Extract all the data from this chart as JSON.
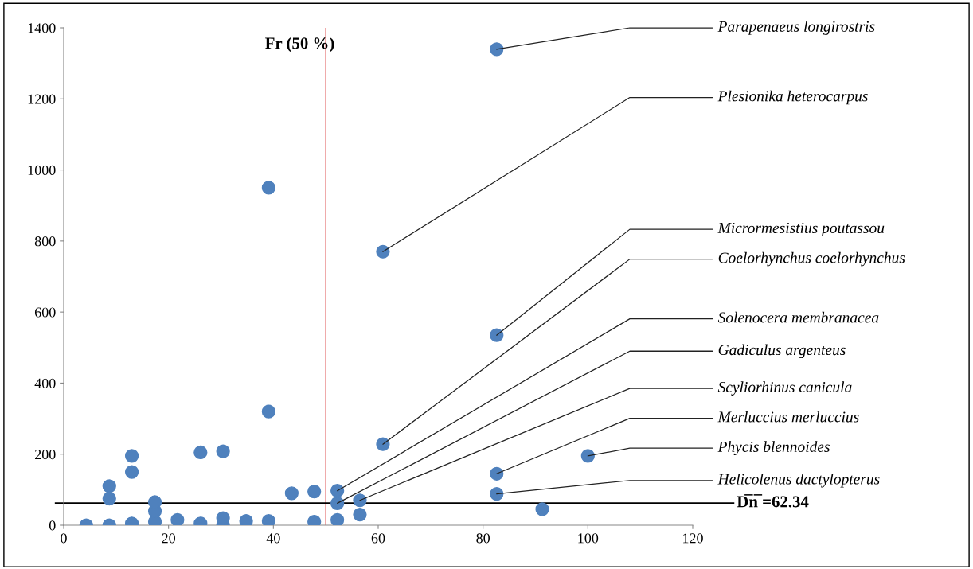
{
  "chart_data": {
    "type": "scatter",
    "marker": "circle",
    "grid": false,
    "legend": false,
    "x": [
      4.3,
      8.7,
      8.7,
      8.7,
      13,
      13,
      13,
      17.4,
      17.4,
      17.4,
      21.7,
      26.1,
      26.1,
      30.4,
      30.4,
      30.4,
      34.8,
      39.1,
      39.1,
      39.1,
      43.5,
      47.8,
      47.8,
      52.2,
      52.2,
      52.2,
      56.5,
      56.5,
      60.9,
      60.9,
      82.6,
      82.6,
      82.6,
      82.6,
      91.3,
      100
    ],
    "series": [
      {
        "color": "#4f81bd",
        "values": [
          0,
          0,
          75,
          110,
          5,
          150,
          195,
          10,
          40,
          65,
          15,
          5,
          205,
          0,
          20,
          208,
          12,
          12,
          320,
          950,
          90,
          10,
          95,
          15,
          62,
          97,
          30,
          70,
          228,
          770,
          88,
          145,
          535,
          1340,
          45,
          195
        ]
      }
    ],
    "xlim": [
      0,
      120
    ],
    "xticks": [
      0,
      20,
      40,
      60,
      80,
      100,
      120
    ],
    "ylim": [
      0,
      1400
    ],
    "yticks": [
      0,
      200,
      400,
      600,
      800,
      1000,
      1200,
      1400
    ],
    "ref_lines": [
      {
        "axis": "x",
        "value": 50,
        "label": "Fr (50 %)",
        "color": "#e06060"
      },
      {
        "axis": "y",
        "value": 62.34,
        "label": "D̅n̅ =62.34",
        "color": "#000000"
      }
    ],
    "annotations": [
      {
        "text": "Parapenaeus longirostris",
        "x": 82.6,
        "y": 1340
      },
      {
        "text": "Plesionika heterocarpus",
        "x": 60.9,
        "y": 770
      },
      {
        "text": "Micrormesistius poutassou",
        "x": 82.6,
        "y": 535
      },
      {
        "text": "Coelorhynchus coelorhynchus",
        "x": 60.9,
        "y": 228
      },
      {
        "text": "Solenocera membranacea",
        "x": 52.2,
        "y": 97
      },
      {
        "text": "Gadiculus argenteus",
        "x": 52.2,
        "y": 62
      },
      {
        "text": "Scyliorhinus canicula",
        "x": 56.5,
        "y": 70
      },
      {
        "text": "Merluccius merluccius",
        "x": 82.6,
        "y": 145
      },
      {
        "text": "Phycis blennoides",
        "x": 100,
        "y": 195
      },
      {
        "text": "Helicolenus dactylopterus",
        "x": 82.6,
        "y": 88
      }
    ]
  }
}
